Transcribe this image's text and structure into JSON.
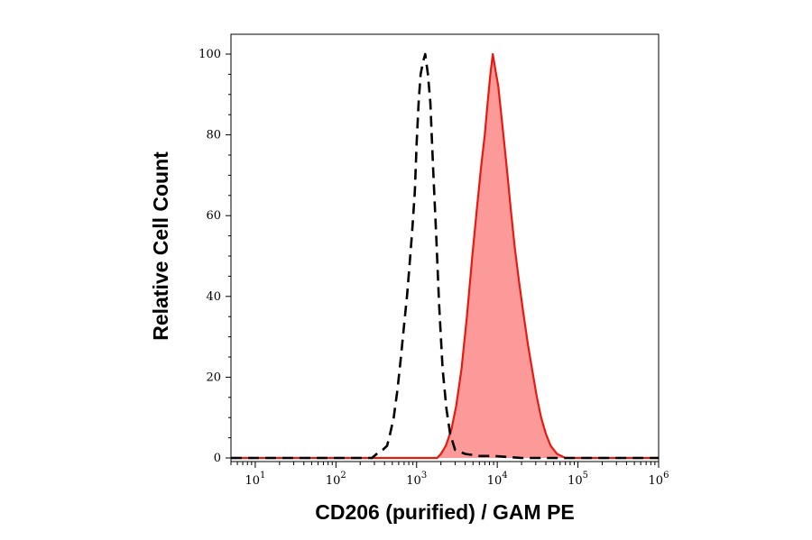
{
  "chart_data": {
    "type": "area",
    "xlabel": "CD206 (purified) / GAM PE",
    "ylabel": "Relative Cell Count",
    "x_scale": "log",
    "xlim": [
      5,
      1000000
    ],
    "ylim": [
      0,
      100
    ],
    "grid": false,
    "x_ticks": [
      {
        "value": 10,
        "base": "10",
        "exp": "1"
      },
      {
        "value": 100,
        "base": "10",
        "exp": "2"
      },
      {
        "value": 1000,
        "base": "10",
        "exp": "3"
      },
      {
        "value": 10000,
        "base": "10",
        "exp": "4"
      },
      {
        "value": 100000,
        "base": "10",
        "exp": "5"
      },
      {
        "value": 1000000,
        "base": "10",
        "exp": "6"
      }
    ],
    "y_ticks": [
      0,
      20,
      40,
      60,
      80,
      100
    ],
    "series": [
      {
        "style": "dashed",
        "color": "#000000",
        "filled": false,
        "x": [
          5,
          280,
          320,
          380,
          430,
          470,
          520,
          580,
          640,
          700,
          760,
          820,
          880,
          950,
          1000,
          1060,
          1120,
          1200,
          1280,
          1380,
          1480,
          1600,
          1750,
          1900,
          2100,
          2350,
          2600,
          3000,
          4000,
          6000,
          9000,
          20000,
          1000000
        ],
        "y": [
          0,
          0,
          1,
          2,
          3,
          6,
          10,
          17,
          25,
          33,
          40,
          48,
          56,
          66,
          78,
          88,
          95,
          98,
          100,
          95,
          88,
          72,
          55,
          38,
          22,
          12,
          6,
          2,
          1,
          0.5,
          0.5,
          0,
          0
        ]
      },
      {
        "style": "solid",
        "color": "#e8190f",
        "fill": "#fc9a9a",
        "filled": true,
        "x": [
          5,
          1800,
          2000,
          2300,
          2700,
          3100,
          3600,
          4200,
          4900,
          5600,
          6300,
          7000,
          7600,
          8200,
          8800,
          9500,
          10300,
          11200,
          12200,
          13400,
          14800,
          16500,
          18500,
          21000,
          24000,
          27500,
          31000,
          35000,
          40000,
          46000,
          55000,
          70000,
          1000000
        ],
        "y": [
          0,
          0,
          1,
          3,
          7,
          13,
          22,
          35,
          50,
          62,
          72,
          80,
          88,
          95,
          100,
          96,
          92,
          85,
          78,
          70,
          61,
          52,
          44,
          36,
          28,
          21,
          15,
          10,
          6,
          3,
          1,
          0,
          0
        ]
      }
    ]
  }
}
